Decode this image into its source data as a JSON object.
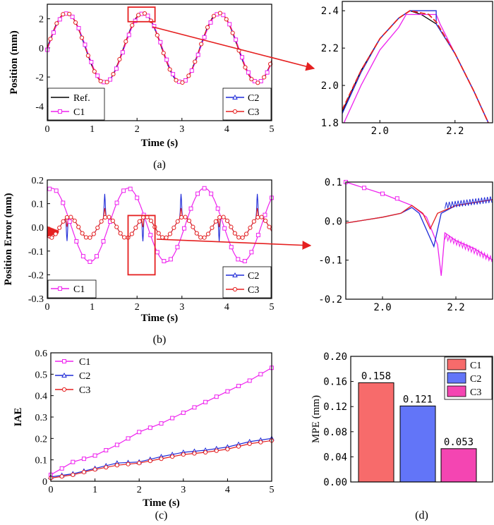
{
  "colors": {
    "ref": "#000000",
    "c1": "#ee22ee",
    "c2": "#1f2bd8",
    "c3": "#e52020",
    "bar1": "#f76b6b",
    "bar2": "#6275f8",
    "bar3": "#f445b2",
    "arrow": "#e52020"
  },
  "chart_data": [
    {
      "id": "a",
      "type": "line",
      "panel_label": "(a)",
      "xlabel": "Time (s)",
      "ylabel": "Position (mm)",
      "xlim": [
        0,
        5
      ],
      "ylim": [
        -5,
        3
      ],
      "xticks": [
        0,
        1,
        2,
        3,
        4,
        5
      ],
      "yticks": [
        -4,
        -2,
        0,
        2
      ],
      "signal": {
        "amplitude": 2.4,
        "period": 1.7,
        "unit": "mm"
      },
      "legend_left": [
        "Ref.",
        "C1"
      ],
      "legend_right": [
        "C2",
        "C3"
      ],
      "zoom_box": {
        "x": [
          1.8,
          2.4
        ],
        "y": [
          1.8,
          2.8
        ]
      }
    },
    {
      "id": "a_zoom",
      "type": "line",
      "xlim": [
        1.9,
        2.3
      ],
      "ylim": [
        1.8,
        2.45
      ],
      "xticks": [
        2.0,
        2.2
      ],
      "yticks": [
        1.8,
        2.0,
        2.2,
        2.4
      ],
      "xtick_labels": [
        "2.0",
        "2.2"
      ],
      "ytick_labels": [
        "1.8",
        "2.0",
        "2.2",
        "2.4"
      ],
      "series": [
        {
          "name": "Ref.",
          "x": [
            1.9,
            1.95,
            2.0,
            2.05,
            2.08,
            2.11,
            2.15,
            2.2,
            2.25,
            2.3
          ],
          "y": [
            1.86,
            2.08,
            2.25,
            2.36,
            2.4,
            2.38,
            2.33,
            2.17,
            1.97,
            1.75
          ]
        },
        {
          "name": "C1",
          "x": [
            1.9,
            1.95,
            2.0,
            2.05,
            2.07,
            2.15,
            2.16,
            2.2,
            2.25,
            2.3
          ],
          "y": [
            1.78,
            2.0,
            2.19,
            2.31,
            2.38,
            2.38,
            2.33,
            2.17,
            1.97,
            1.75
          ]
        },
        {
          "name": "C2",
          "x": [
            1.9,
            1.95,
            2.0,
            2.05,
            2.08,
            2.15,
            2.15,
            2.2,
            2.25,
            2.3
          ],
          "y": [
            1.85,
            2.07,
            2.25,
            2.36,
            2.4,
            2.4,
            2.33,
            2.17,
            1.97,
            1.75
          ]
        },
        {
          "name": "C3",
          "x": [
            1.9,
            1.95,
            2.0,
            2.05,
            2.08,
            2.13,
            2.15,
            2.2,
            2.25,
            2.3
          ],
          "y": [
            1.87,
            2.08,
            2.25,
            2.36,
            2.4,
            2.38,
            2.34,
            2.17,
            1.97,
            1.75
          ]
        }
      ]
    },
    {
      "id": "b",
      "type": "line",
      "panel_label": "(b)",
      "xlabel": "Time (s)",
      "ylabel": "Position Error (mm)",
      "xlim": [
        0,
        5
      ],
      "ylim": [
        -0.3,
        0.2
      ],
      "xticks": [
        0,
        1,
        2,
        3,
        4,
        5
      ],
      "yticks": [
        -0.3,
        -0.2,
        -0.1,
        0.0,
        0.1,
        0.2
      ],
      "ytick_labels": [
        "-0.3",
        "-0.2",
        "-0.1",
        "0.0",
        "0.1",
        "0.2"
      ],
      "c1_error_amplitude": 0.155,
      "c2_c3_error_amplitude": 0.05,
      "spike_times": [
        0.43,
        1.27,
        2.12,
        2.97,
        3.82,
        4.67
      ],
      "legend_left": [
        "C1"
      ],
      "legend_right": [
        "C2",
        "C3"
      ],
      "zoom_box": {
        "x": [
          1.8,
          2.4
        ],
        "y": [
          -0.2,
          0.05
        ]
      }
    },
    {
      "id": "b_zoom",
      "type": "line",
      "xlim": [
        1.9,
        2.3
      ],
      "ylim": [
        -0.2,
        0.1
      ],
      "xticks": [
        2.0,
        2.2
      ],
      "yticks": [
        -0.2,
        -0.1,
        0.0,
        0.1
      ],
      "xtick_labels": [
        "2.0",
        "2.2"
      ],
      "ytick_labels": [
        "-0.2",
        "-0.1",
        "0.0",
        "0.1"
      ],
      "series": [
        {
          "name": "C1",
          "x": [
            1.9,
            2.0,
            2.08,
            2.12,
            2.15,
            2.16,
            2.17,
            2.2,
            2.25,
            2.3
          ],
          "y": [
            0.1,
            0.07,
            0.04,
            0.01,
            -0.06,
            -0.14,
            -0.03,
            -0.05,
            -0.07,
            -0.1
          ]
        },
        {
          "name": "C2",
          "x": [
            1.9,
            2.0,
            2.05,
            2.08,
            2.1,
            2.14,
            2.16,
            2.2,
            2.3
          ],
          "y": [
            -0.005,
            0.01,
            0.02,
            0.035,
            0.02,
            -0.065,
            0.02,
            0.04,
            0.055
          ]
        },
        {
          "name": "C3",
          "x": [
            1.9,
            2.0,
            2.05,
            2.08,
            2.11,
            2.13,
            2.15,
            2.2,
            2.3
          ],
          "y": [
            -0.005,
            0.01,
            0.02,
            0.04,
            0.02,
            -0.02,
            0.02,
            0.04,
            0.055
          ]
        }
      ]
    },
    {
      "id": "c",
      "type": "line",
      "panel_label": "(c)",
      "xlabel": "Time (s)",
      "ylabel": "IAE",
      "xlim": [
        0,
        5
      ],
      "ylim": [
        0,
        0.6
      ],
      "xticks": [
        0,
        1,
        2,
        3,
        4,
        5
      ],
      "yticks": [
        0,
        0.1,
        0.2,
        0.3,
        0.4,
        0.5,
        0.6
      ],
      "ytick_labels": [
        "0",
        "0.1",
        "0.2",
        "0.3",
        "0.4",
        "0.5",
        "0.6"
      ],
      "legend": [
        "C1",
        "C2",
        "C3"
      ],
      "series": [
        {
          "name": "C1",
          "x": [
            0,
            0.5,
            1,
            1.5,
            2,
            2.5,
            3,
            3.5,
            4,
            4.5,
            5
          ],
          "y": [
            0.03,
            0.09,
            0.12,
            0.17,
            0.23,
            0.27,
            0.32,
            0.37,
            0.42,
            0.47,
            0.53
          ]
        },
        {
          "name": "C2",
          "x": [
            0,
            0.5,
            1,
            1.5,
            2,
            2.5,
            3,
            3.5,
            4,
            4.5,
            5
          ],
          "y": [
            0.02,
            0.035,
            0.06,
            0.085,
            0.09,
            0.115,
            0.135,
            0.145,
            0.16,
            0.185,
            0.2
          ]
        },
        {
          "name": "C3",
          "x": [
            0,
            0.5,
            1,
            1.5,
            2,
            2.5,
            3,
            3.5,
            4,
            4.5,
            5
          ],
          "y": [
            0.015,
            0.03,
            0.055,
            0.075,
            0.085,
            0.105,
            0.125,
            0.135,
            0.15,
            0.175,
            0.19
          ]
        }
      ]
    },
    {
      "id": "d",
      "type": "bar",
      "panel_label": "(d)",
      "ylabel": "MPE (mm)",
      "ylim": [
        0,
        0.2
      ],
      "yticks": [
        0,
        0.04,
        0.08,
        0.12,
        0.16,
        0.2
      ],
      "ytick_labels": [
        "0.00",
        "0.04",
        "0.08",
        "0.12",
        "0.16",
        "0.20"
      ],
      "categories": [
        "C1",
        "C2",
        "C3"
      ],
      "values": [
        0.158,
        0.121,
        0.053
      ],
      "value_labels": [
        "0.158",
        "0.121",
        "0.053"
      ],
      "legend": [
        "C1",
        "C2",
        "C3"
      ]
    }
  ]
}
